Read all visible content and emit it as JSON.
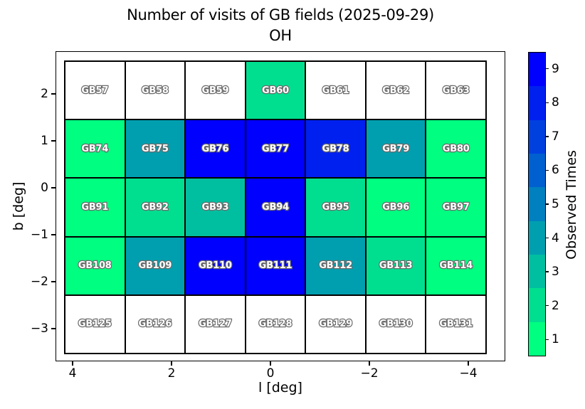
{
  "title": {
    "line1": "Number of visits of GB fields (2025-09-29)",
    "line2": "OH"
  },
  "chart_data": {
    "type": "heatmap",
    "title": "Number of visits of GB fields (2025-09-29)",
    "subtitle": "OH",
    "xlabel": "l [deg]",
    "ylabel": "b [deg]",
    "x_tick_labels": [
      "4",
      "2",
      "0",
      "−2",
      "−4"
    ],
    "y_tick_labels": [
      "2",
      "1",
      "0",
      "−1",
      "−2",
      "−3"
    ],
    "x_axis_inverted": true,
    "colorbar_label": "Observed Times",
    "colorbar_ticks": [
      "1",
      "2",
      "3",
      "4",
      "5",
      "6",
      "7",
      "8",
      "9"
    ],
    "palette": {
      "1": "#00FF80",
      "2": "#00DF90",
      "3": "#00BFA0",
      "4": "#009FB0",
      "5": "#0080BF",
      "6": "#0060CF",
      "7": "#0040DF",
      "8": "#0020EF",
      "9": "#0000FF",
      "unobserved": "#FFFFFF"
    },
    "rows": [
      {
        "fields": [
          "GB57",
          "GB58",
          "GB59",
          "GB60",
          "GB61",
          "GB62",
          "GB63"
        ],
        "values": [
          null,
          null,
          null,
          2,
          null,
          null,
          null
        ]
      },
      {
        "fields": [
          "GB74",
          "GB75",
          "GB76",
          "GB77",
          "GB78",
          "GB79",
          "GB80"
        ],
        "values": [
          1,
          4,
          9,
          9,
          8,
          4,
          1
        ]
      },
      {
        "fields": [
          "GB91",
          "GB92",
          "GB93",
          "GB94",
          "GB95",
          "GB96",
          "GB97"
        ],
        "values": [
          1,
          2,
          3,
          9,
          2,
          1,
          1
        ]
      },
      {
        "fields": [
          "GB108",
          "GB109",
          "GB110",
          "GB111",
          "GB112",
          "GB113",
          "GB114"
        ],
        "values": [
          1,
          4,
          9,
          9,
          4,
          2,
          1
        ]
      },
      {
        "fields": [
          "GB125",
          "GB126",
          "GB127",
          "GB128",
          "GB129",
          "GB130",
          "GB131"
        ],
        "values": [
          null,
          null,
          null,
          null,
          null,
          null,
          null
        ]
      }
    ]
  }
}
